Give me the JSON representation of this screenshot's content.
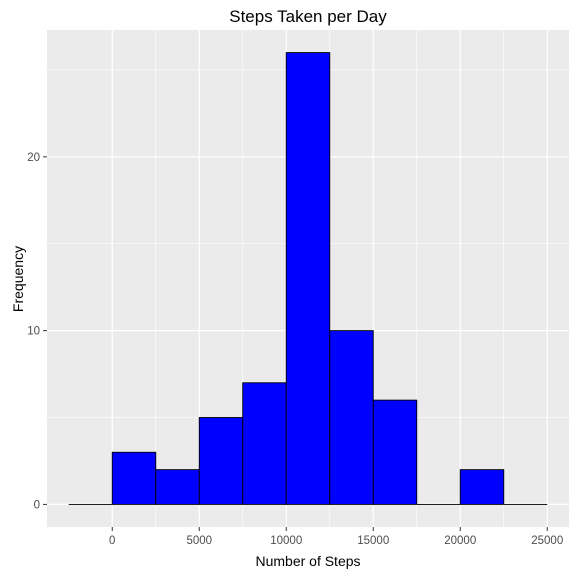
{
  "chart_data": {
    "type": "bar",
    "title": "Steps Taken per Day",
    "xlabel": "Number of Steps",
    "ylabel": "Frequency",
    "bin_width": 2500,
    "bins": [
      {
        "x0": -2500,
        "x1": 0,
        "count": 0
      },
      {
        "x0": 0,
        "x1": 2500,
        "count": 3
      },
      {
        "x0": 2500,
        "x1": 5000,
        "count": 2
      },
      {
        "x0": 5000,
        "x1": 7500,
        "count": 5
      },
      {
        "x0": 7500,
        "x1": 10000,
        "count": 7
      },
      {
        "x0": 10000,
        "x1": 12500,
        "count": 26
      },
      {
        "x0": 12500,
        "x1": 15000,
        "count": 10
      },
      {
        "x0": 15000,
        "x1": 17500,
        "count": 6
      },
      {
        "x0": 17500,
        "x1": 20000,
        "count": 0
      },
      {
        "x0": 20000,
        "x1": 22500,
        "count": 2
      },
      {
        "x0": 22500,
        "x1": 25000,
        "count": 0
      }
    ],
    "xlim": [
      -3750,
      26250
    ],
    "ylim": [
      -1.3,
      27.3
    ],
    "x_ticks": [
      0,
      5000,
      10000,
      15000,
      20000,
      25000
    ],
    "x_tick_labels": [
      "0",
      "5000",
      "10000",
      "15000",
      "20000",
      "25000"
    ],
    "y_ticks": [
      0,
      10,
      20
    ],
    "y_tick_labels": [
      "0",
      "10",
      "20"
    ],
    "grid": true,
    "colors": {
      "bar_fill": "#0000FF",
      "bar_outline": "#000000",
      "panel_background": "#EBEBEB",
      "grid_major": "#FFFFFF",
      "tick_label": "#4D4D4D"
    }
  }
}
